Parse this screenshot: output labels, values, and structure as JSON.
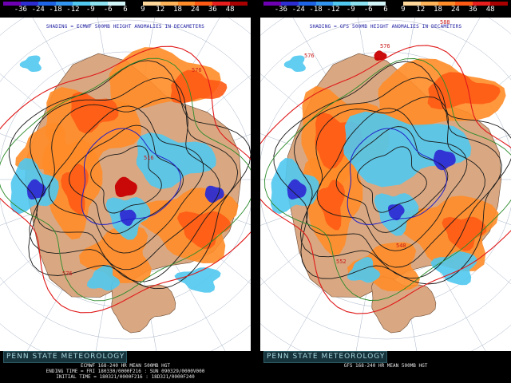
{
  "legend": {
    "ticks": [
      "-36",
      "-24",
      "-18",
      "-12",
      "-9",
      "-6",
      "6",
      "9",
      "12",
      "18",
      "24",
      "36",
      "48"
    ],
    "colors": [
      "#6e00b4",
      "#2d2dd2",
      "#1e64e6",
      "#3296f0",
      "#50c8f0",
      "#8ce1f0",
      "#d2f5fa",
      "#000000",
      "#ffd79b",
      "#ffb45a",
      "#ff8c28",
      "#ff5a14",
      "#e61e1e",
      "#aa0000"
    ]
  },
  "panels": [
    {
      "shading_title": "SHADING = ECMWF 500MB HEIGHT ANOMALIES IN DECAMETERS",
      "brand": "PENN STATE METEOROLOGY",
      "footer": [
        "ECMWF 168-240 HR MEAN 500MB HGT",
        "ENDING TIME = FRI 180330/0000F216 : SUN 090329/0000V000",
        "INITIAL TIME = 180321/0000F216 : 18D321/0000F240"
      ],
      "contour_labels": [
        "516",
        "576",
        "576"
      ]
    },
    {
      "shading_title": "SHADING = GFS 500MB HEIGHT ANOMALIES IN DECAMETERS",
      "brand": "PENN STATE METEOROLOGY",
      "footer": [
        "GFS 168-240 HR MEAN 500MB HGT"
      ],
      "contour_labels": [
        "588",
        "576",
        "576",
        "540",
        "552"
      ]
    }
  ]
}
